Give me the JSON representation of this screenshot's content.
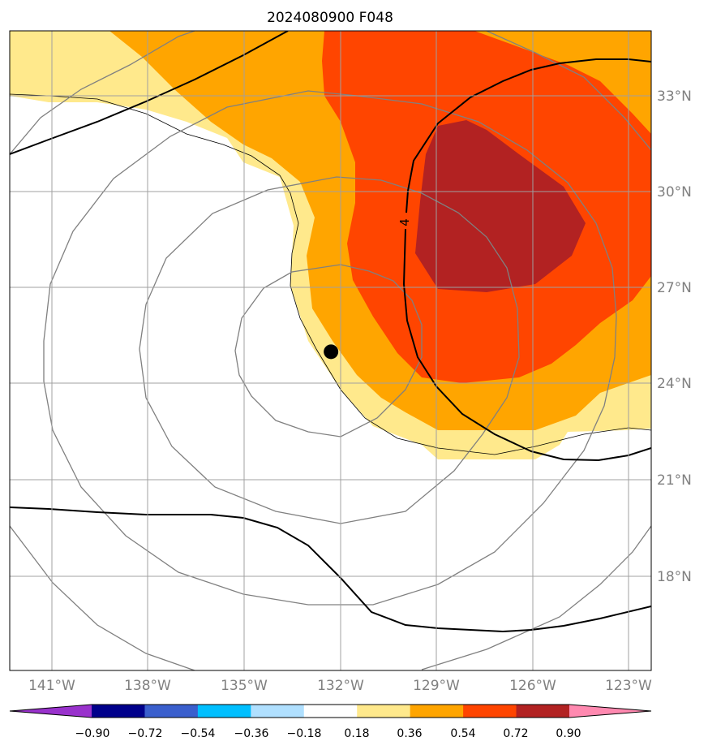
{
  "title": "2024080900 F048",
  "map": {
    "lon_ticks": [
      "141°W",
      "138°W",
      "135°W",
      "132°W",
      "129°W",
      "126°W",
      "123°W"
    ],
    "lat_ticks": [
      "33°N",
      "30°N",
      "27°N",
      "24°N",
      "21°N",
      "18°N"
    ],
    "contour_label": "4",
    "marker": {
      "name": "center-dot",
      "lon": -132.3,
      "lat": 25.0
    }
  },
  "colorbar": {
    "colors": [
      "#9932cc",
      "#00008b",
      "#3a5fcd",
      "#00bfff",
      "#b0e0ff",
      "#ffffff",
      "#ffe98c",
      "#ffa500",
      "#ff4500",
      "#b22222",
      "#ff89b0"
    ],
    "labels": [
      "−0.90",
      "−0.72",
      "−0.54",
      "−0.36",
      "−0.18",
      "0.18",
      "0.36",
      "0.54",
      "0.72",
      "0.90"
    ]
  }
}
